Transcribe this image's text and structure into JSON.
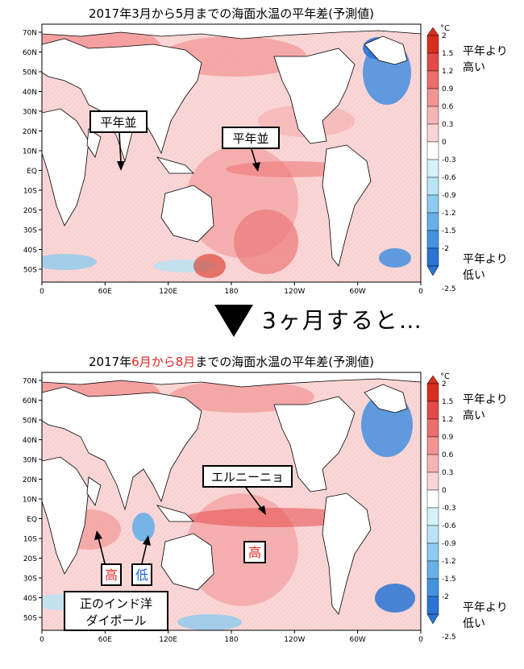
{
  "top": {
    "title": "2017年3月から5月までの海面水温の平年差(予測値)",
    "labels": {
      "normal_a": "平年並",
      "normal_b": "平年並"
    }
  },
  "transition": {
    "text": "3ヶ月すると…"
  },
  "bottom": {
    "title_year": "2017年",
    "title_m1": "6月",
    "title_from": "から",
    "title_m2": "8月",
    "title_rest": "までの海面水温の平年差(予測値)",
    "labels": {
      "elnino": "エルニーニョ",
      "high_a": "高",
      "low": "低",
      "high_b": "高",
      "iod_line1": "正のインド洋",
      "iod_line2": "ダイポール"
    }
  },
  "axes": {
    "lat_ticks": [
      "70N",
      "60N",
      "50N",
      "40N",
      "30N",
      "20N",
      "10N",
      "EQ",
      "10S",
      "20S",
      "30S",
      "40S",
      "50S"
    ],
    "lon_ticks": [
      "0",
      "60E",
      "120E",
      "180",
      "120W",
      "60W",
      "0"
    ]
  },
  "legend": {
    "unit": "°C",
    "ticks": [
      "2",
      "1.5",
      "1.2",
      "0.9",
      "0.6",
      "0.3",
      "0",
      "-0.3",
      "-0.6",
      "-0.9",
      "-1.2",
      "-1.5",
      "-2",
      "-2.5"
    ],
    "colors": [
      "#d7301f",
      "#e34a4a",
      "#ec6e6e",
      "#f29494",
      "#f6b5b5",
      "#fad5d5",
      "#ffffff",
      "#d6f2f7",
      "#b7e3f5",
      "#8fcbef",
      "#67b0e8",
      "#4493df",
      "#2a74d4"
    ],
    "high_label_1": "平年より",
    "high_label_2": "高い",
    "low_label_1": "平年より",
    "low_label_2": "低い"
  },
  "colors": {
    "warm": "#e8261f",
    "cool": "#1a66d6",
    "title_highlight": "#e8261f"
  }
}
